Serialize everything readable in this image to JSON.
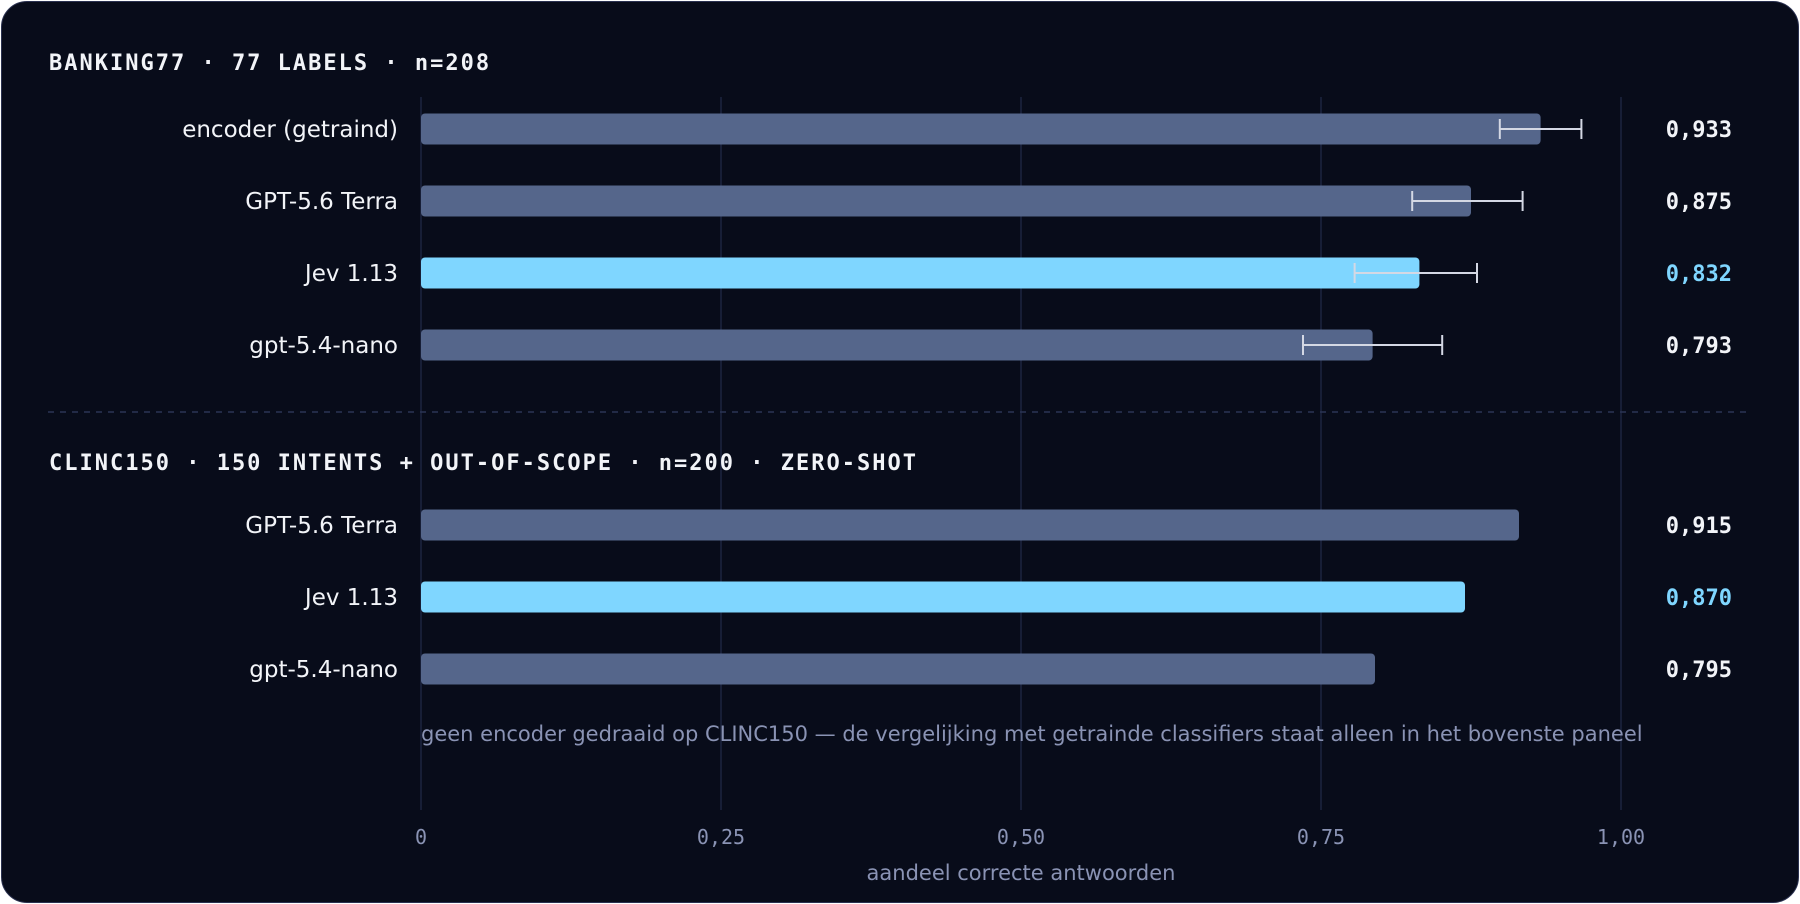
{
  "colors": {
    "background": "#080c1a",
    "bar": "#55668b",
    "highlight": "#7fd6ff",
    "grid": "#1c2440",
    "text": "#f2f4f8",
    "muted": "#8a93b4",
    "errorbar": "#d4d8e4"
  },
  "chart_data": [
    {
      "type": "bar",
      "orientation": "horizontal",
      "title": "BANKING77 · 77 LABELS · n=208",
      "categories": [
        "encoder (getraind)",
        "GPT-5.6 Terra",
        "Jev 1.13",
        "gpt-5.4-nano"
      ],
      "values": [
        0.933,
        0.875,
        0.832,
        0.793
      ],
      "value_labels": [
        "0,933",
        "0,875",
        "0,832",
        "0,793"
      ],
      "ci_low": [
        0.899,
        0.826,
        0.778,
        0.735
      ],
      "ci_high": [
        0.967,
        0.918,
        0.88,
        0.851
      ],
      "highlight": "Jev 1.13"
    },
    {
      "type": "bar",
      "orientation": "horizontal",
      "title": "CLINC150 · 150 INTENTS + OUT-OF-SCOPE · n=200 · ZERO-SHOT",
      "categories": [
        "GPT-5.6 Terra",
        "Jev 1.13",
        "gpt-5.4-nano"
      ],
      "values": [
        0.915,
        0.87,
        0.795
      ],
      "value_labels": [
        "0,915",
        "0,870",
        "0,795"
      ],
      "highlight": "Jev 1.13",
      "note": "geen encoder gedraaid op CLINC150 — de vergelijking met getrainde classifiers staat alleen in het bovenste paneel"
    }
  ],
  "axis": {
    "xlim": [
      0,
      1
    ],
    "ticks": [
      0,
      0.25,
      0.5,
      0.75,
      1.0
    ],
    "tick_labels": [
      "0",
      "0,25",
      "0,50",
      "0,75",
      "1,00"
    ],
    "xlabel": "aandeel correcte antwoorden",
    "grid": true
  }
}
